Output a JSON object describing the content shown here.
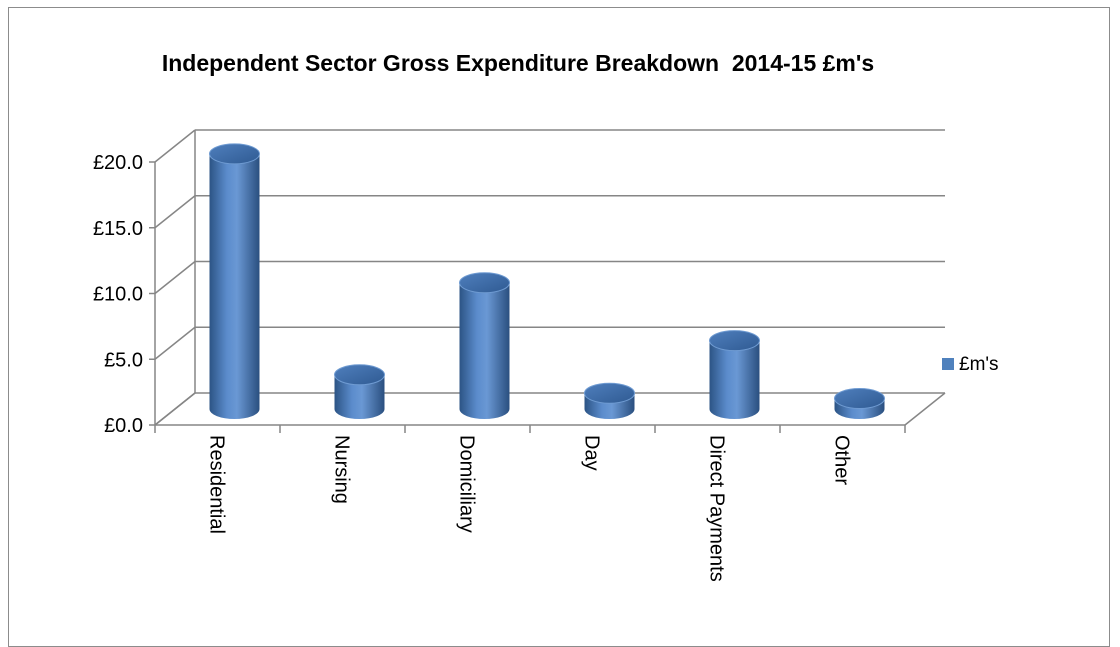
{
  "chart_data": {
    "type": "bar",
    "title": "Independent Sector Gross Expenditure Breakdown  2014-15 £m's",
    "categories": [
      "Residential",
      "Nursing",
      "Domiciliary",
      "Day",
      "Direct Payments",
      "Other"
    ],
    "series": [
      {
        "name": "£m's",
        "values": [
          19.4,
          2.6,
          9.6,
          1.2,
          5.2,
          0.8
        ],
        "color": "#4f81bd"
      }
    ],
    "ylim": [
      0,
      20
    ],
    "yticks": [
      "£0.0",
      "£5.0",
      "£10.0",
      "£15.0",
      "£20.0"
    ],
    "ytick_values": [
      0,
      5,
      10,
      15,
      20
    ],
    "grid": true,
    "legend_position": "right",
    "style": "3d-cylinder"
  }
}
